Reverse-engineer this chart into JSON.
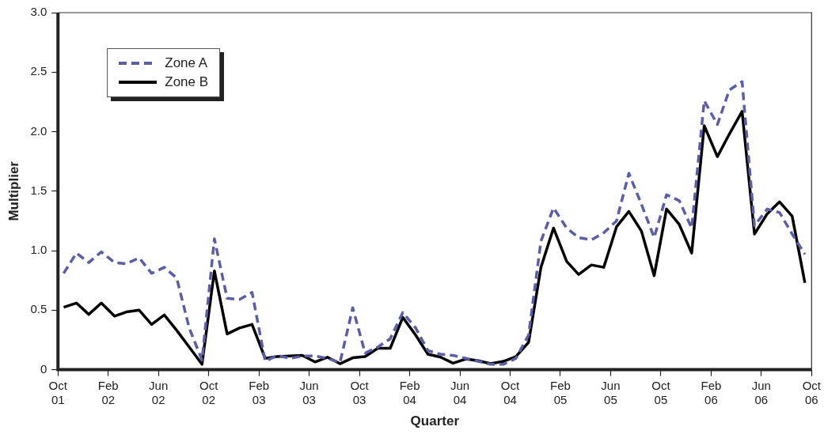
{
  "chart_data": {
    "type": "line",
    "xlabel": "Quarter",
    "ylabel": "Multiplier",
    "x": [
      "2001-10-15",
      "2001-11-15",
      "2001-12-15",
      "2002-01-15",
      "2002-02-15",
      "2002-03-15",
      "2002-04-15",
      "2002-05-15",
      "2002-06-15",
      "2002-07-15",
      "2002-08-15",
      "2002-09-15",
      "2002-10-15",
      "2002-11-15",
      "2002-12-15",
      "2003-01-15",
      "2003-02-15",
      "2003-03-15",
      "2003-04-15",
      "2003-05-15",
      "2003-06-15",
      "2003-07-15",
      "2003-08-15",
      "2003-09-15",
      "2003-10-15",
      "2003-11-15",
      "2003-12-15",
      "2004-01-15",
      "2004-02-15",
      "2004-03-15",
      "2004-04-15",
      "2004-05-15",
      "2004-06-15",
      "2004-07-15",
      "2004-08-15",
      "2004-09-15",
      "2004-10-15",
      "2004-11-15",
      "2004-12-15",
      "2005-01-15",
      "2005-02-15",
      "2005-03-15",
      "2005-04-15",
      "2005-05-15",
      "2005-06-15",
      "2005-07-15",
      "2005-08-15",
      "2005-09-15",
      "2005-10-15",
      "2005-11-15",
      "2005-12-15",
      "2006-01-15",
      "2006-02-15",
      "2006-03-15",
      "2006-04-15",
      "2006-05-15",
      "2006-06-15",
      "2006-07-15",
      "2006-08-15",
      "2006-09-15"
    ],
    "series": [
      {
        "name": "Zone A",
        "color": "#5b5ea6",
        "line_style": "dashed",
        "values": [
          0.81,
          0.98,
          0.9,
          0.99,
          0.9,
          0.89,
          0.94,
          0.81,
          0.86,
          0.77,
          0.35,
          0.08,
          1.1,
          0.6,
          0.59,
          0.65,
          0.07,
          0.12,
          0.095,
          0.115,
          0.115,
          0.095,
          0.06,
          0.52,
          0.14,
          0.19,
          0.26,
          0.48,
          0.35,
          0.16,
          0.13,
          0.12,
          0.095,
          0.07,
          0.045,
          0.045,
          0.095,
          0.29,
          1.08,
          1.36,
          1.19,
          1.11,
          1.09,
          1.15,
          1.25,
          1.65,
          1.39,
          1.11,
          1.47,
          1.42,
          1.19,
          2.26,
          2.06,
          2.35,
          2.42,
          1.21,
          1.35,
          1.32,
          1.14,
          0.97
        ]
      },
      {
        "name": "Zone B",
        "color": "#000000",
        "line_style": "solid",
        "values": [
          0.525,
          0.56,
          0.465,
          0.56,
          0.45,
          0.485,
          0.5,
          0.38,
          0.46,
          0.33,
          0.19,
          0.045,
          0.83,
          0.3,
          0.35,
          0.38,
          0.095,
          0.11,
          0.115,
          0.12,
          0.065,
          0.105,
          0.05,
          0.1,
          0.11,
          0.18,
          0.18,
          0.44,
          0.29,
          0.13,
          0.105,
          0.055,
          0.09,
          0.075,
          0.05,
          0.07,
          0.11,
          0.23,
          0.86,
          1.19,
          0.91,
          0.8,
          0.88,
          0.86,
          1.2,
          1.33,
          1.165,
          0.79,
          1.35,
          1.22,
          0.98,
          2.05,
          1.79,
          1.98,
          2.17,
          1.14,
          1.31,
          1.41,
          1.29,
          0.73
        ]
      }
    ],
    "xlim": [
      "2001-10-01",
      "2006-10-01"
    ],
    "xticks": [
      {
        "value": "2001-10-01",
        "label": "Oct 01"
      },
      {
        "value": "2002-02-01",
        "label": "Feb 02"
      },
      {
        "value": "2002-06-01",
        "label": "Jun 02"
      },
      {
        "value": "2002-10-01",
        "label": "Oct 02"
      },
      {
        "value": "2003-02-01",
        "label": "Feb 03"
      },
      {
        "value": "2003-06-01",
        "label": "Jun 03"
      },
      {
        "value": "2003-10-01",
        "label": "Oct 03"
      },
      {
        "value": "2004-02-01",
        "label": "Feb 04"
      },
      {
        "value": "2004-06-01",
        "label": "Jun 04"
      },
      {
        "value": "2004-10-01",
        "label": "Oct 04"
      },
      {
        "value": "2005-02-01",
        "label": "Feb 05"
      },
      {
        "value": "2005-06-01",
        "label": "Jun 05"
      },
      {
        "value": "2005-10-01",
        "label": "Oct 05"
      },
      {
        "value": "2006-02-01",
        "label": "Feb 06"
      },
      {
        "value": "2006-06-01",
        "label": "Jun 06"
      },
      {
        "value": "2006-10-01",
        "label": "Oct 06"
      }
    ],
    "ylim": [
      0,
      3
    ],
    "yticks": [
      0,
      0.5,
      {
        "value": 1,
        "label": "1.0"
      },
      1.5,
      {
        "value": 2,
        "label": "2.0"
      },
      2.5,
      {
        "value": 3,
        "label": "3.0"
      }
    ],
    "grid": false,
    "legend": "top left",
    "marker": "none"
  }
}
